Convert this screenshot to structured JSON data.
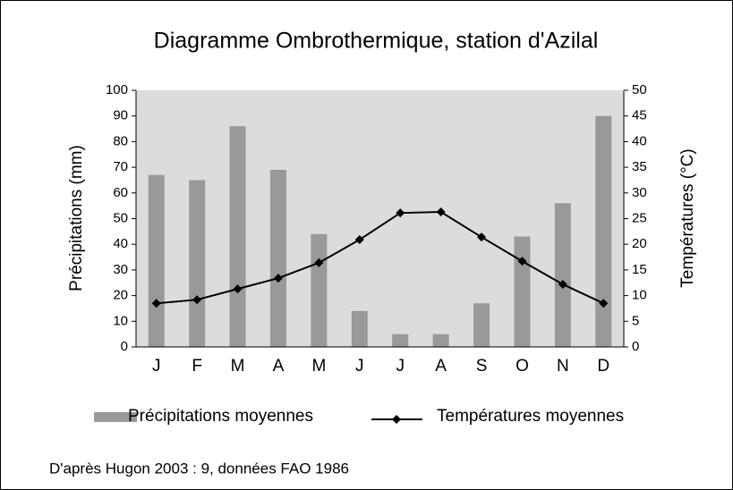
{
  "chart_data": {
    "type": "bar",
    "title": "Diagramme Ombrothermique, station d'Azilal",
    "y_label": "Précipitations (mm)",
    "y2_label": "Températures (°C)",
    "categories": [
      "J",
      "F",
      "M",
      "A",
      "M",
      "J",
      "J",
      "A",
      "S",
      "O",
      "N",
      "D"
    ],
    "series": [
      {
        "name": "Précipitations moyennes",
        "type": "bar",
        "color": "#999999",
        "values": [
          67,
          65,
          86,
          69,
          44,
          14,
          5,
          5,
          17,
          43,
          56,
          90
        ]
      },
      {
        "name": "Températures moyennes",
        "type": "line",
        "axis": "y2",
        "color": "#000000",
        "values": [
          8.5,
          9.2,
          11.3,
          13.4,
          16.4,
          20.9,
          26.1,
          26.3,
          21.4,
          16.7,
          12.2,
          8.5
        ]
      }
    ],
    "ylim": [
      0,
      100
    ],
    "yticks": [
      0,
      10,
      20,
      30,
      40,
      50,
      60,
      70,
      80,
      90,
      100
    ],
    "y2lim": [
      0,
      50
    ],
    "y2ticks": [
      0,
      5,
      10,
      15,
      20,
      25,
      30,
      35,
      40,
      45,
      50
    ],
    "plot_background": "#dcdcdc",
    "source": "D'après Hugon 2003 : 9, données FAO 1986"
  }
}
